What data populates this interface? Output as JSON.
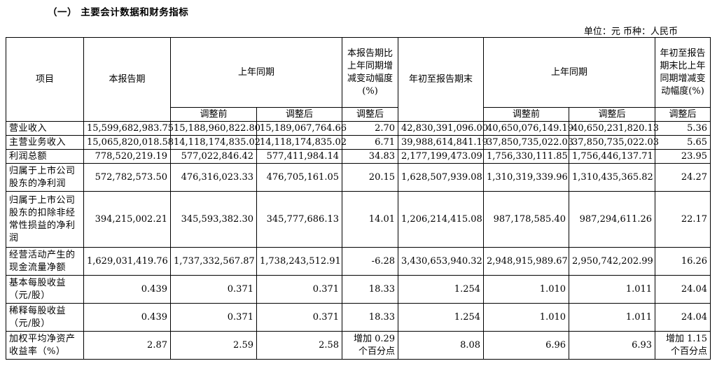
{
  "section_title": "（一）  主要会计数据和财务指标",
  "unit_line": "单位：元    币种：人民币",
  "header": {
    "item": "项目",
    "current_period": "本报告期",
    "prev_same_period_1": "上年同期",
    "yoy_change_current": "本报告期比上年同期增减变动幅度(%)",
    "ytd_end": "年初至报告期末",
    "prev_same_period_2": "上年同期",
    "yoy_change_ytd": "年初至报告期末比上年同期增减变动幅度(%)",
    "before_adj_1": "调整前",
    "after_adj_1": "调整后",
    "after_adj_2": "调整后",
    "before_adj_2": "调整前",
    "after_adj_3": "调整后",
    "after_adj_4": "调整后"
  },
  "rows": [
    [
      "营业收入",
      "15,599,682,983.75",
      "15,188,960,822.80",
      "15,189,067,764.66",
      "2.70",
      "42,830,391,096.00",
      "40,650,076,149.19",
      "40,650,231,820.13",
      "5.36"
    ],
    [
      "主营业务收入",
      "15,065,820,018.58",
      "14,118,174,835.02",
      "14,118,174,835.02",
      "6.71",
      "39,988,614,841.19",
      "37,850,735,022.03",
      "37,850,735,022.03",
      "5.65"
    ],
    [
      "利润总额",
      "778,520,219.19",
      "577,022,846.42",
      "577,411,984.14",
      "34.83",
      "2,177,199,473.09",
      "1,756,330,111.85",
      "1,756,446,137.71",
      "23.95"
    ],
    [
      "归属于上市公司股东的净利润",
      "572,782,573.50",
      "476,316,023.33",
      "476,705,161.05",
      "20.15",
      "1,628,507,939.08",
      "1,310,319,339.96",
      "1,310,435,365.82",
      "24.27"
    ],
    [
      "归属于上市公司股东的扣除非经常性损益的净利润",
      "394,215,002.21",
      "345,593,382.30",
      "345,777,686.13",
      "14.01",
      "1,206,214,415.08",
      "987,178,585.40",
      "987,294,611.26",
      "22.17"
    ],
    [
      "经营活动产生的现金流量净额",
      "1,629,031,419.76",
      "1,737,332,567.87",
      "1,738,243,512.91",
      "-6.28",
      "3,430,653,940.32",
      "2,948,915,989.67",
      "2,950,742,202.99",
      "16.26"
    ],
    [
      "基本每股收益（元/股）",
      "0.439",
      "0.371",
      "0.371",
      "18.33",
      "1.254",
      "1.010",
      "1.011",
      "24.04"
    ],
    [
      "稀释每股收益（元/股）",
      "0.439",
      "0.371",
      "0.371",
      "18.33",
      "1.254",
      "1.010",
      "1.011",
      "24.04"
    ],
    [
      "加权平均净资产收益率（%）",
      "2.87",
      "2.59",
      "2.58",
      "增加 0.29 个百分点",
      "8.08",
      "6.96",
      "6.93",
      "增加 1.15 个百分点"
    ]
  ]
}
